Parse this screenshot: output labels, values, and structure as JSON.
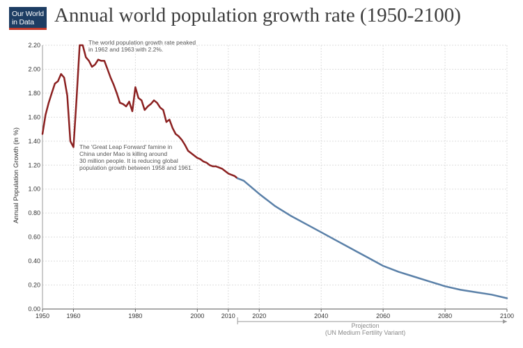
{
  "logo": {
    "line1": "Our World",
    "line2": "in Data"
  },
  "chart_data": {
    "type": "line",
    "title": "Annual world population growth rate (1950-2100)",
    "ylabel": "Annual Population Growth (in %)",
    "xlabel": "",
    "xlim": [
      1950,
      2100
    ],
    "ylim": [
      0,
      2.2
    ],
    "x_ticks": [
      "1950",
      "1960",
      "1980",
      "2000",
      "2010",
      "2020",
      "2040",
      "2060",
      "2080",
      "2100"
    ],
    "x_tick_values": [
      1950,
      1960,
      1980,
      2000,
      2010,
      2020,
      2040,
      2060,
      2080,
      2100
    ],
    "y_ticks": [
      "0.00",
      "0.20",
      "0.40",
      "0.60",
      "0.80",
      "1.00",
      "1.20",
      "1.40",
      "1.60",
      "1.80",
      "2.00",
      "2.20"
    ],
    "y_tick_values": [
      0,
      0.2,
      0.4,
      0.6,
      0.8,
      1.0,
      1.2,
      1.4,
      1.6,
      1.8,
      2.0,
      2.2
    ],
    "grid": true,
    "colors": {
      "historical": "#8b2020",
      "projection": "#5a80a8"
    },
    "series": [
      {
        "values_x": [
          1950,
          1951,
          1952,
          1953,
          1954,
          1955,
          1956,
          1957,
          1958,
          1959,
          1960,
          1961,
          1962,
          1963,
          1964,
          1965,
          1966,
          1967,
          1968,
          1969,
          1970,
          1971,
          1972,
          1973,
          1974,
          1975,
          1976,
          1977,
          1978,
          1979,
          1980,
          1981,
          1982,
          1983,
          1984,
          1985,
          1986,
          1987,
          1988,
          1989,
          1990,
          1991,
          1992,
          1993,
          1994,
          1995,
          1996,
          1997,
          1998,
          1999,
          2000,
          2001,
          2002,
          2003,
          2004,
          2005,
          2006,
          2007,
          2008,
          2009,
          2010,
          2011,
          2012,
          2013
        ],
        "values_y": [
          1.46,
          1.62,
          1.72,
          1.8,
          1.88,
          1.9,
          1.96,
          1.93,
          1.78,
          1.4,
          1.35,
          1.75,
          2.2,
          2.2,
          2.1,
          2.07,
          2.02,
          2.04,
          2.08,
          2.07,
          2.07,
          2.0,
          1.93,
          1.87,
          1.8,
          1.72,
          1.71,
          1.69,
          1.73,
          1.65,
          1.85,
          1.76,
          1.74,
          1.66,
          1.69,
          1.71,
          1.74,
          1.72,
          1.68,
          1.66,
          1.56,
          1.58,
          1.51,
          1.46,
          1.44,
          1.41,
          1.37,
          1.32,
          1.3,
          1.28,
          1.26,
          1.25,
          1.23,
          1.22,
          1.2,
          1.19,
          1.19,
          1.18,
          1.17,
          1.15,
          1.13,
          1.12,
          1.11,
          1.09
        ]
      },
      {
        "values_x": [
          2013,
          2015,
          2020,
          2025,
          2030,
          2035,
          2040,
          2045,
          2050,
          2055,
          2060,
          2065,
          2070,
          2075,
          2080,
          2085,
          2090,
          2095,
          2100
        ],
        "values_y": [
          1.09,
          1.07,
          0.96,
          0.86,
          0.78,
          0.71,
          0.64,
          0.57,
          0.5,
          0.43,
          0.36,
          0.31,
          0.27,
          0.23,
          0.19,
          0.16,
          0.14,
          0.12,
          0.09
        ]
      }
    ],
    "annotations": [
      {
        "lines": [
          "The world population growth rate peaked",
          "in 1962 and 1963 with 2.2%."
        ]
      },
      {
        "lines": [
          "The 'Great Leap Forward' famine in",
          "China under Mao is killing around",
          "30 million people. It is reducing global",
          "population growth between 1958 and 1961."
        ]
      }
    ],
    "projection_label": [
      "Projection",
      "(UN Medium Fertility Variant)"
    ]
  }
}
